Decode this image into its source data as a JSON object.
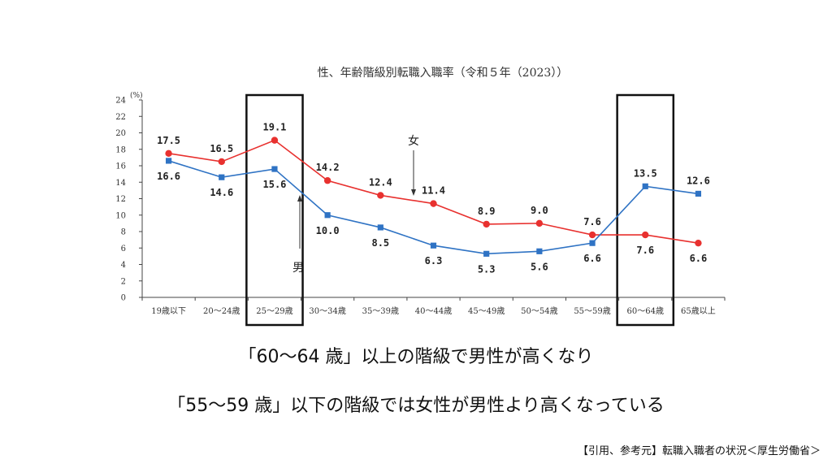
{
  "chart_data": {
    "type": "line",
    "title": "性、年齢階級別転職入職率（令和５年（2023））",
    "ylabel": "(%)",
    "ylim": [
      0,
      24
    ],
    "yticks": [
      0,
      2,
      4,
      6,
      8,
      10,
      12,
      14,
      16,
      18,
      20,
      22,
      24
    ],
    "grid": false,
    "categories": [
      "19歳以下",
      "20～24歳",
      "25～29歳",
      "30～34歳",
      "35～39歳",
      "40～44歳",
      "45～49歳",
      "50～54歳",
      "55～59歳",
      "60～64歳",
      "65歳以上"
    ],
    "series": [
      {
        "name": "女",
        "color": "#e8312f",
        "marker": "circle",
        "values": [
          17.5,
          16.5,
          19.1,
          14.2,
          12.4,
          11.4,
          8.9,
          9.0,
          7.6,
          7.6,
          6.6
        ],
        "labels": [
          "17.5",
          "16.5",
          "19.1",
          "14.2",
          "12.4",
          "11.4",
          "8.9",
          "9.0",
          "7.6",
          "7.6",
          "6.6"
        ]
      },
      {
        "name": "男",
        "color": "#2f73c4",
        "marker": "square",
        "values": [
          16.6,
          14.6,
          15.6,
          10.0,
          8.5,
          6.3,
          5.3,
          5.6,
          6.6,
          13.5,
          12.6
        ],
        "labels": [
          "16.6",
          "14.6",
          "15.6",
          "10.0",
          "8.5",
          "6.3",
          "5.3",
          "5.6",
          "6.6",
          "13.5",
          "12.6"
        ]
      }
    ],
    "highlighted_categories": [
      "25～29歳",
      "60～64歳"
    ]
  },
  "captions": {
    "line1": "「60～64 歳」以上の階級で男性が高くなり",
    "line2": "「55～59 歳」以下の階級では女性が男性より高くなっている"
  },
  "source": "【引用、参考元】転職入職者の状況＜厚生労働省＞"
}
